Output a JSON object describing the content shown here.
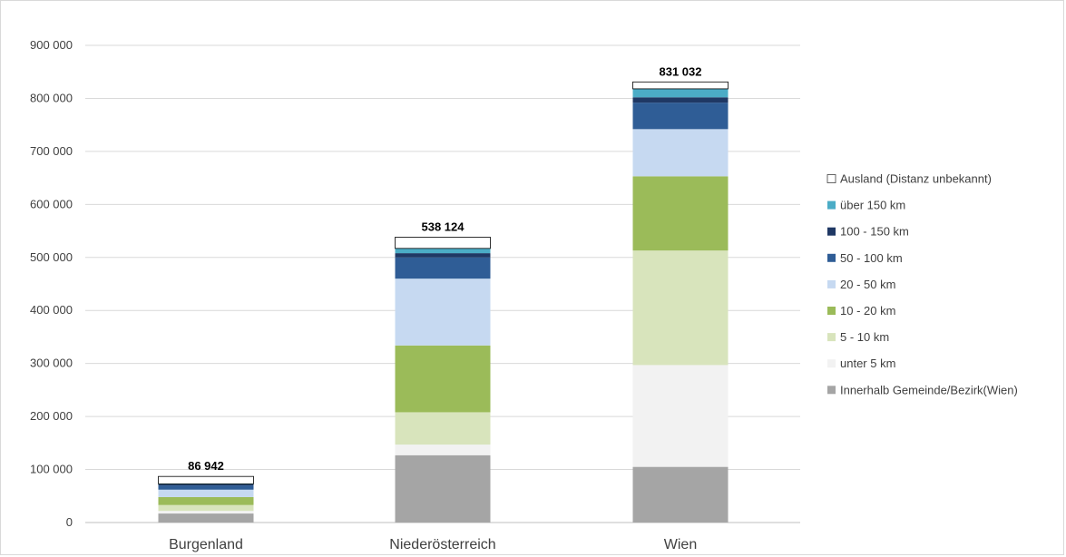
{
  "chart_data": {
    "type": "bar",
    "stacked": true,
    "categories": [
      "Burgenland",
      "Niederösterreich",
      "Wien"
    ],
    "ylim": [
      0,
      900000
    ],
    "yticks": [
      0,
      100000,
      200000,
      300000,
      400000,
      500000,
      600000,
      700000,
      800000,
      900000
    ],
    "ytick_labels": [
      "0",
      "100 000",
      "200 000",
      "300 000",
      "400 000",
      "500 000",
      "600 000",
      "700 000",
      "800 000",
      "900 000"
    ],
    "grid": true,
    "legend_position": "right",
    "totals": [
      86942,
      538124,
      831032
    ],
    "total_labels": [
      "86 942",
      "538 124",
      "831 032"
    ],
    "series": [
      {
        "name": "Innerhalb Gemeinde/Bezirk(Wien)",
        "color": "#a5a5a5",
        "values": [
          17000,
          127000,
          105000
        ]
      },
      {
        "name": "unter 5 km",
        "color": "#f2f2f2",
        "values": [
          5000,
          20000,
          192000
        ]
      },
      {
        "name": "5 - 10 km",
        "color": "#d8e4bc",
        "values": [
          11000,
          61000,
          216000
        ]
      },
      {
        "name": "10 - 20 km",
        "color": "#9bbb59",
        "values": [
          15000,
          126000,
          140000
        ]
      },
      {
        "name": "20 - 50 km",
        "color": "#c6d9f1",
        "values": [
          14000,
          126000,
          89000
        ]
      },
      {
        "name": "50 - 100 km",
        "color": "#2f5d96",
        "values": [
          8000,
          40000,
          50000
        ]
      },
      {
        "name": "100 - 150 km",
        "color": "#1f3864",
        "values": [
          2000,
          8000,
          10000
        ]
      },
      {
        "name": "über 150 km",
        "color": "#4bacc6",
        "values": [
          1000,
          9000,
          16000
        ]
      },
      {
        "name": "Ausland (Distanz unbekannt)",
        "color": "#ffffff",
        "values": [
          13942,
          21124,
          13032
        ]
      }
    ]
  }
}
